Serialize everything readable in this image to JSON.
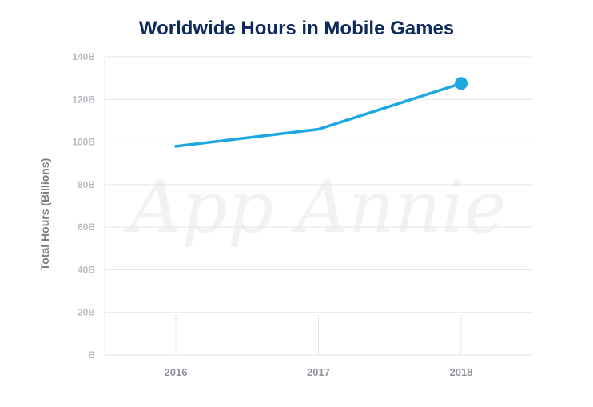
{
  "title": "Worldwide Hours in Mobile Games",
  "watermark": "App Annie",
  "colors": {
    "line": "#1ea7e1",
    "title": "#0f2a5c",
    "grid": "#e3e5e8"
  },
  "chart_data": {
    "type": "line",
    "title": "Worldwide Hours in Mobile Games",
    "ylabel": "Total Hours (Billions)",
    "xlabel": "",
    "categories": [
      "2016",
      "2017",
      "2018"
    ],
    "series": [
      {
        "values": [
          98,
          106,
          127.5
        ]
      }
    ],
    "ylim": [
      0,
      140
    ],
    "yticks": [
      0,
      20,
      40,
      60,
      80,
      100,
      120,
      140
    ],
    "ytick_labels": [
      "B",
      "20B",
      "40B",
      "60B",
      "80B",
      "100B",
      "120B",
      "140B"
    ],
    "grid": true,
    "end_marker": true
  }
}
